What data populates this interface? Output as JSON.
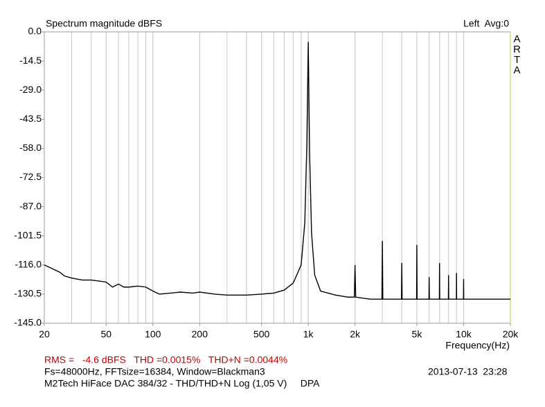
{
  "chart_data": {
    "type": "line",
    "title": "Spectrum magnitude dBFS",
    "channel_label": "Left  Avg:0",
    "brand": "ARTA",
    "x_label": "Frequency(Hz)",
    "annotations": [
      "RMS =   -4.6 dBFS   THD =0.0015%   THD+N =0.0044%",
      "Fs=48000Hz, FFTsize=16384, Window=Blackman3",
      "2013-07-13  23:28",
      "M2Tech HiFace DAC 384/32 - THD/THD+N Log (1,05 V)     DPA"
    ],
    "x_scale": "log",
    "grid": true,
    "minor_grid": true,
    "color": "#000000",
    "xlim": [
      20,
      20000
    ],
    "xticks": [
      20,
      50,
      100,
      200,
      500,
      {
        "value": 1000,
        "label": "1k"
      },
      {
        "value": 2000,
        "label": "2k"
      },
      {
        "value": 5000,
        "label": "5k"
      },
      {
        "value": 10000,
        "label": "10k"
      },
      {
        "value": 20000,
        "label": "20k"
      }
    ],
    "ylim": [
      -145,
      0
    ],
    "yticks": [
      {
        "value": 0,
        "label": "0.0"
      },
      -14.5,
      {
        "value": -29,
        "label": "-29.0"
      },
      -43.5,
      {
        "value": -58,
        "label": "-58.0"
      },
      -72.5,
      {
        "value": -87,
        "label": "-87.0"
      },
      -101.5,
      {
        "value": -116,
        "label": "-116.0"
      },
      -130.5,
      {
        "value": -145,
        "label": "-145.0"
      }
    ],
    "x": [
      20,
      22,
      25,
      27,
      30,
      35,
      40,
      45,
      50,
      55,
      60,
      65,
      70,
      80,
      90,
      100,
      110,
      130,
      150,
      180,
      200,
      250,
      300,
      400,
      500,
      600,
      700,
      800,
      900,
      950,
      980,
      1000,
      1020,
      1050,
      1100,
      1200,
      1500,
      1800,
      1980,
      2000,
      2020,
      2500,
      2980,
      3000,
      3020,
      3500,
      3980,
      4000,
      4020,
      4500,
      4980,
      5000,
      5020,
      5500,
      5980,
      6000,
      6020,
      6500,
      6980,
      7000,
      7020,
      7500,
      7980,
      8000,
      8020,
      8500,
      8980,
      9000,
      9020,
      9500,
      9980,
      10000,
      10020,
      12000,
      14000,
      16000,
      18000,
      20000
    ],
    "values": [
      -116,
      -117.5,
      -119.5,
      -121.5,
      -122.5,
      -123.5,
      -123.5,
      -124,
      -124.5,
      -127,
      -125.5,
      -127,
      -127,
      -126.5,
      -127,
      -129,
      -130.5,
      -130,
      -129.5,
      -130,
      -129.5,
      -130.5,
      -131,
      -131,
      -130.5,
      -130,
      -128.5,
      -125,
      -116,
      -95,
      -55,
      -5,
      -60,
      -100,
      -121,
      -129,
      -131,
      -132,
      -132,
      -116,
      -132,
      -133,
      -133,
      -104,
      -133,
      -133,
      -133,
      -115,
      -133,
      -133,
      -133,
      -106,
      -133,
      -133,
      -133,
      -122,
      -133,
      -133,
      -133,
      -115,
      -133,
      -133,
      -133,
      -121,
      -133,
      -133,
      -133,
      -120,
      -133,
      -133,
      -133,
      -123,
      -133,
      -133,
      -133,
      -133,
      -133,
      -133
    ]
  }
}
